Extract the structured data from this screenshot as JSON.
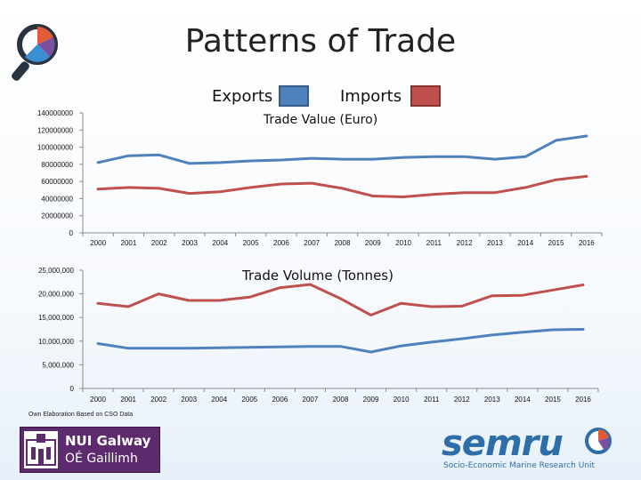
{
  "page": {
    "title": "Patterns of Trade",
    "legend": [
      {
        "label": "Exports",
        "color": "#4f81bd"
      },
      {
        "label": "Imports",
        "color": "#c0504d"
      }
    ],
    "footnote": "Own Elaboration Based on CSO Data",
    "logos": {
      "nui_line1": "NUI Galway",
      "nui_line2": "OÉ Gaillimh",
      "semru_word": "semru",
      "semru_sub": "Socio-Economic Marine Research Unit"
    }
  },
  "chart_data": [
    {
      "type": "line",
      "title": "Trade Value (Euro)",
      "categories": [
        "2000",
        "2001",
        "2002",
        "2003",
        "2004",
        "2005",
        "2006",
        "2007",
        "2008",
        "2009",
        "2010",
        "2011",
        "2012",
        "2013",
        "2014",
        "2015",
        "2016"
      ],
      "ylim": [
        0,
        140000000
      ],
      "yticks": [
        0,
        20000000,
        40000000,
        60000000,
        80000000,
        100000000,
        120000000,
        140000000
      ],
      "ytick_labels": [
        "0",
        "20000000",
        "40000000",
        "60000000",
        "80000000",
        "100000000",
        "120000000",
        "140000000"
      ],
      "series": [
        {
          "name": "Exports",
          "color": "#4f81bd",
          "values": [
            82000000,
            90000000,
            91000000,
            81000000,
            82000000,
            84000000,
            85000000,
            87000000,
            86000000,
            86000000,
            88000000,
            89000000,
            89000000,
            86000000,
            89000000,
            108000000,
            113000000
          ]
        },
        {
          "name": "Imports",
          "color": "#c0504d",
          "values": [
            51000000,
            53000000,
            52000000,
            46000000,
            48000000,
            53000000,
            57000000,
            58000000,
            52000000,
            43000000,
            42000000,
            45000000,
            47000000,
            47000000,
            53000000,
            62000000,
            66000000
          ]
        }
      ]
    },
    {
      "type": "line",
      "title": "Trade Volume (Tonnes)",
      "categories": [
        "2000",
        "2001",
        "2002",
        "2003",
        "2004",
        "2005",
        "2006",
        "2007",
        "2008",
        "2009",
        "2010",
        "2011",
        "2012",
        "2013",
        "2014",
        "2015",
        "2016"
      ],
      "ylim": [
        0,
        25000000
      ],
      "yticks": [
        0,
        5000000,
        10000000,
        15000000,
        20000000,
        25000000
      ],
      "ytick_labels": [
        "0",
        "5,000,000",
        "10,000,000",
        "15,000,000",
        "20,000,000",
        "25,000,000"
      ],
      "series": [
        {
          "name": "Exports",
          "color": "#4f81bd",
          "values": [
            9500000,
            8500000,
            8500000,
            8500000,
            8600000,
            8700000,
            8800000,
            8900000,
            8900000,
            7700000,
            9000000,
            9800000,
            10500000,
            11300000,
            11900000,
            12400000,
            12500000
          ]
        },
        {
          "name": "Imports",
          "color": "#c0504d",
          "values": [
            18000000,
            17300000,
            20000000,
            18600000,
            18600000,
            19300000,
            21300000,
            22000000,
            19000000,
            15500000,
            18000000,
            17300000,
            17400000,
            19600000,
            19700000,
            20800000,
            21900000
          ]
        }
      ]
    }
  ]
}
